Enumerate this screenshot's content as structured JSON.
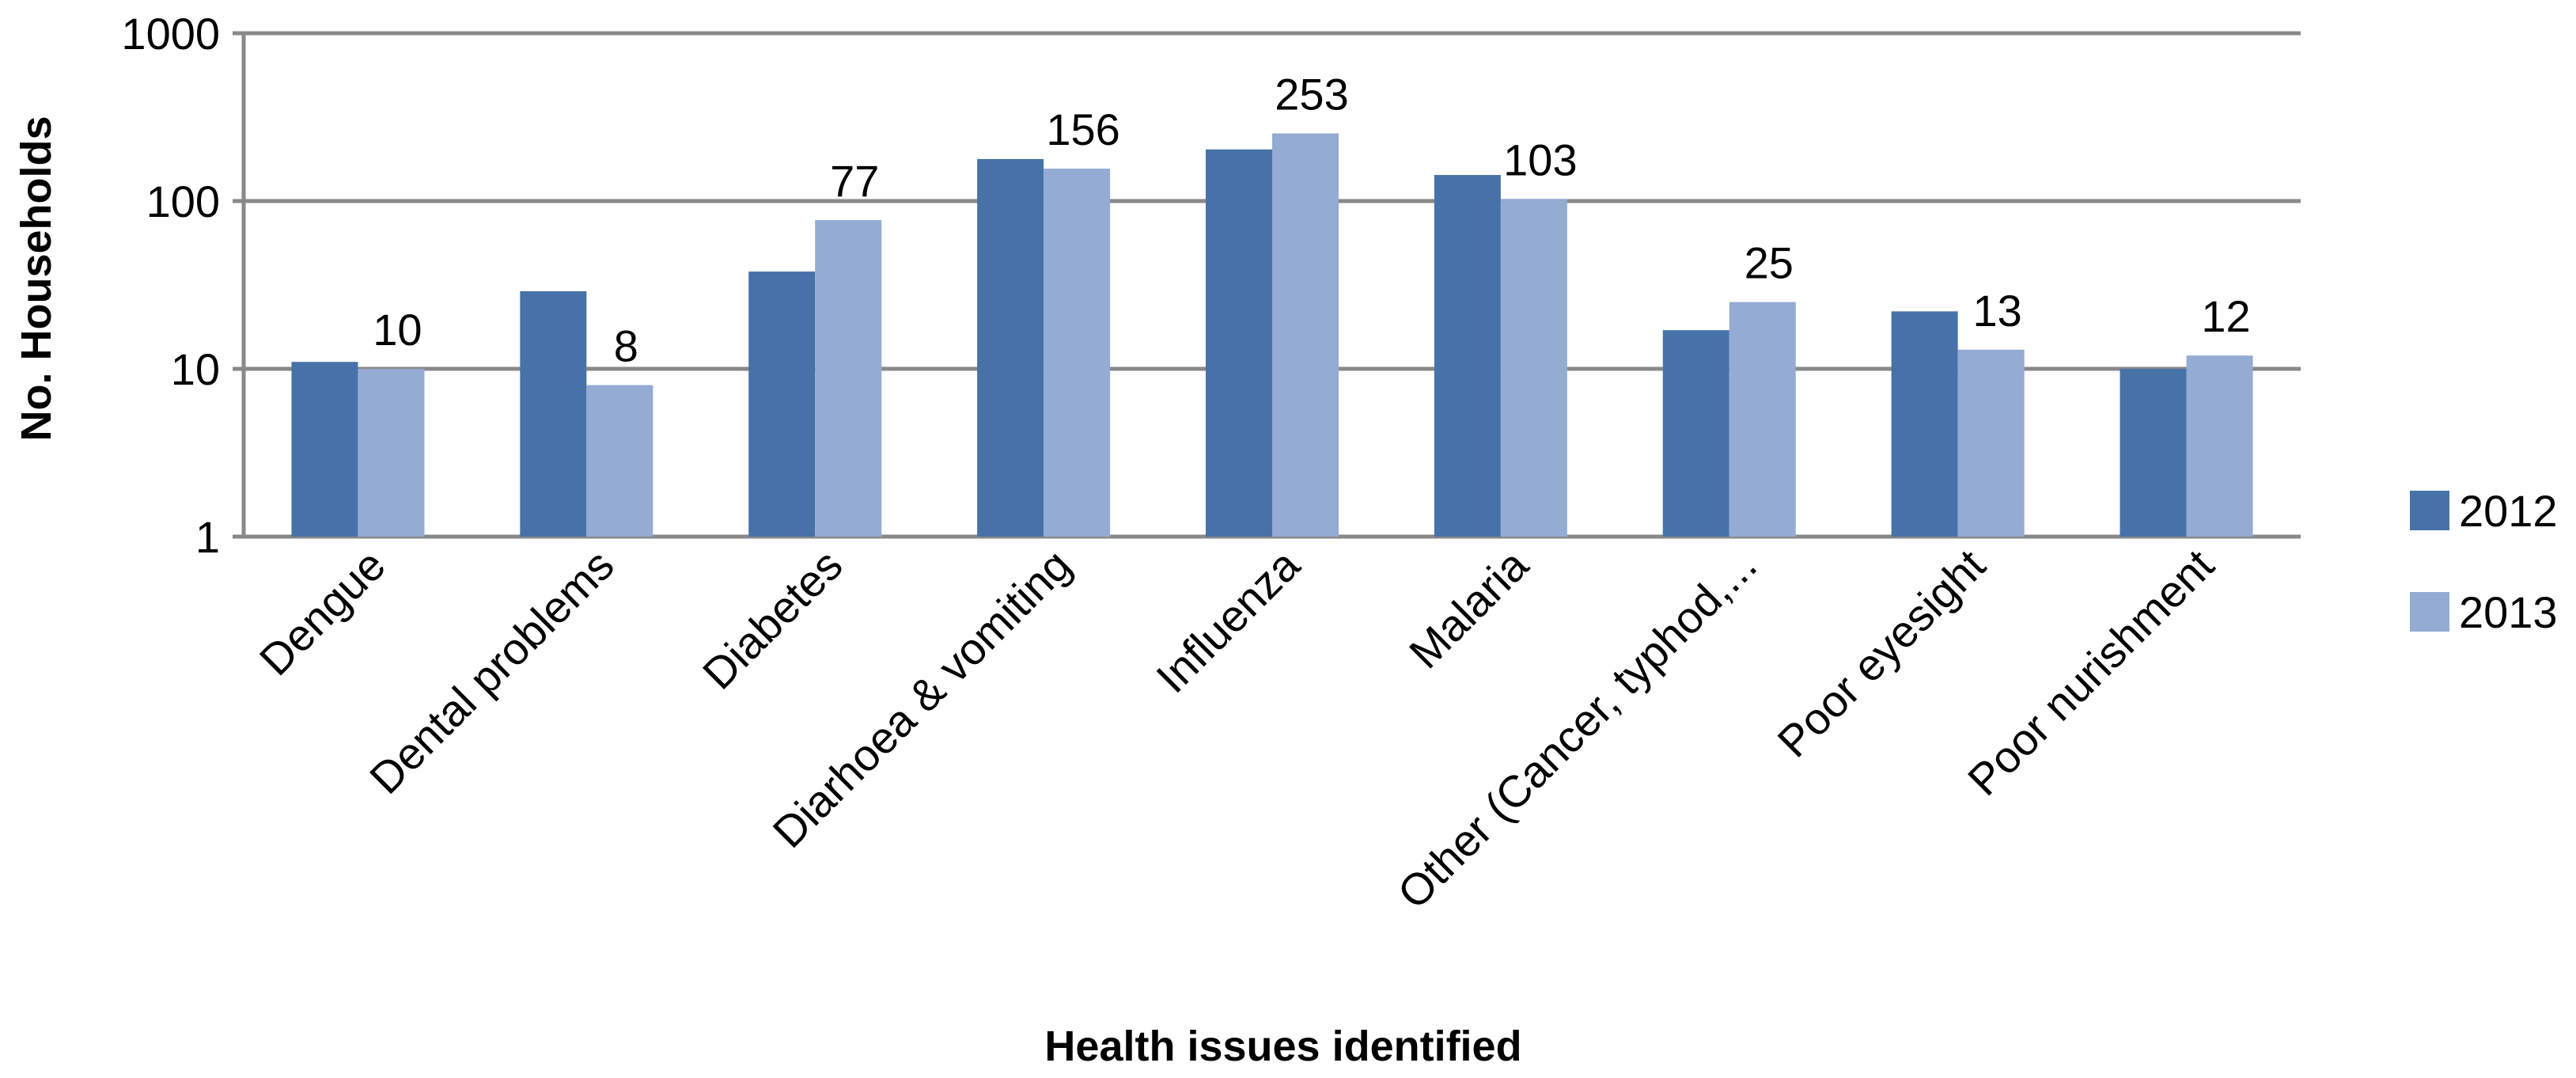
{
  "chart_data": {
    "type": "bar",
    "xlabel": "Health issues identified",
    "ylabel": "No. Households",
    "yscale": "log",
    "ylim": [
      1,
      1000
    ],
    "yticks": [
      "1",
      "10",
      "100",
      "1000"
    ],
    "grid": true,
    "legend_position": "right",
    "categories": [
      "Dengue",
      "Dental problems",
      "Diabetes",
      "Diarhoea & vomiting",
      "Influenza",
      "Malaria",
      "Other (Cancer, typhod,...",
      "Poor eyesight",
      "Poor nurishment"
    ],
    "series": [
      {
        "name": "2012",
        "values": [
          11,
          29,
          38,
          178,
          203,
          143,
          17,
          22,
          10
        ]
      },
      {
        "name": "2013",
        "values": [
          10,
          8,
          77,
          156,
          253,
          103,
          25,
          13,
          12
        ]
      }
    ],
    "data_labels": [
      "10",
      "8",
      "77",
      "156",
      "253",
      "103",
      "25",
      "13",
      "12"
    ],
    "colors": {
      "2012": "#4672a8",
      "2013": "#94abd3",
      "grid": "#898989"
    }
  }
}
